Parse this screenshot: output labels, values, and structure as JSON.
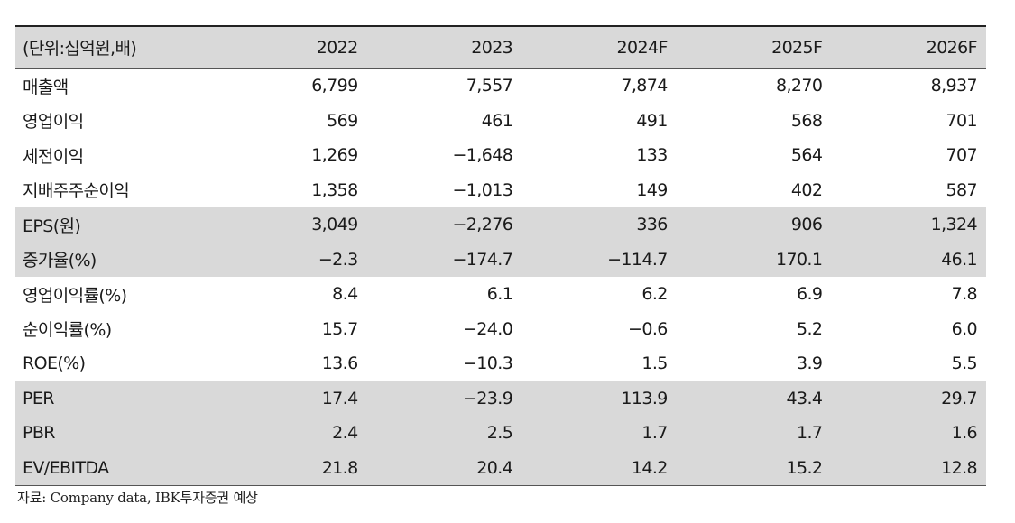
{
  "header": {
    "unit_label": "(단위:십억원,배)",
    "years": [
      "2022",
      "2023",
      "2024F",
      "2025F",
      "2026F"
    ]
  },
  "rows": [
    {
      "label": "매출액",
      "values": [
        "6,799",
        "7,557",
        "7,874",
        "8,270",
        "8,937"
      ],
      "shaded": false
    },
    {
      "label": "영업이익",
      "values": [
        "569",
        "461",
        "491",
        "568",
        "701"
      ],
      "shaded": false
    },
    {
      "label": "세전이익",
      "values": [
        "1,269",
        "−1,648",
        "133",
        "564",
        "707"
      ],
      "shaded": false
    },
    {
      "label": "지배주주순이익",
      "values": [
        "1,358",
        "−1,013",
        "149",
        "402",
        "587"
      ],
      "shaded": false
    },
    {
      "label": "EPS(원)",
      "values": [
        "3,049",
        "−2,276",
        "336",
        "906",
        "1,324"
      ],
      "shaded": true
    },
    {
      "label": "증가율(%)",
      "values": [
        "−2.3",
        "−174.7",
        "−114.7",
        "170.1",
        "46.1"
      ],
      "shaded": true
    },
    {
      "label": "영업이익률(%)",
      "values": [
        "8.4",
        "6.1",
        "6.2",
        "6.9",
        "7.8"
      ],
      "shaded": false
    },
    {
      "label": "순이익률(%)",
      "values": [
        "15.7",
        "−24.0",
        "−0.6",
        "5.2",
        "6.0"
      ],
      "shaded": false
    },
    {
      "label": "ROE(%)",
      "values": [
        "13.6",
        "−10.3",
        "1.5",
        "3.9",
        "5.5"
      ],
      "shaded": false
    },
    {
      "label": "PER",
      "values": [
        "17.4",
        "−23.9",
        "113.9",
        "43.4",
        "29.7"
      ],
      "shaded": true
    },
    {
      "label": "PBR",
      "values": [
        "2.4",
        "2.5",
        "1.7",
        "1.7",
        "1.6"
      ],
      "shaded": true
    },
    {
      "label": "EV/EBITDA",
      "values": [
        "21.8",
        "20.4",
        "14.2",
        "15.2",
        "12.8"
      ],
      "shaded": true
    }
  ],
  "source": "자료: Company data, IBK투자증권 예상",
  "colors": {
    "shade": "#d9d9d9",
    "rule": "#222222"
  }
}
